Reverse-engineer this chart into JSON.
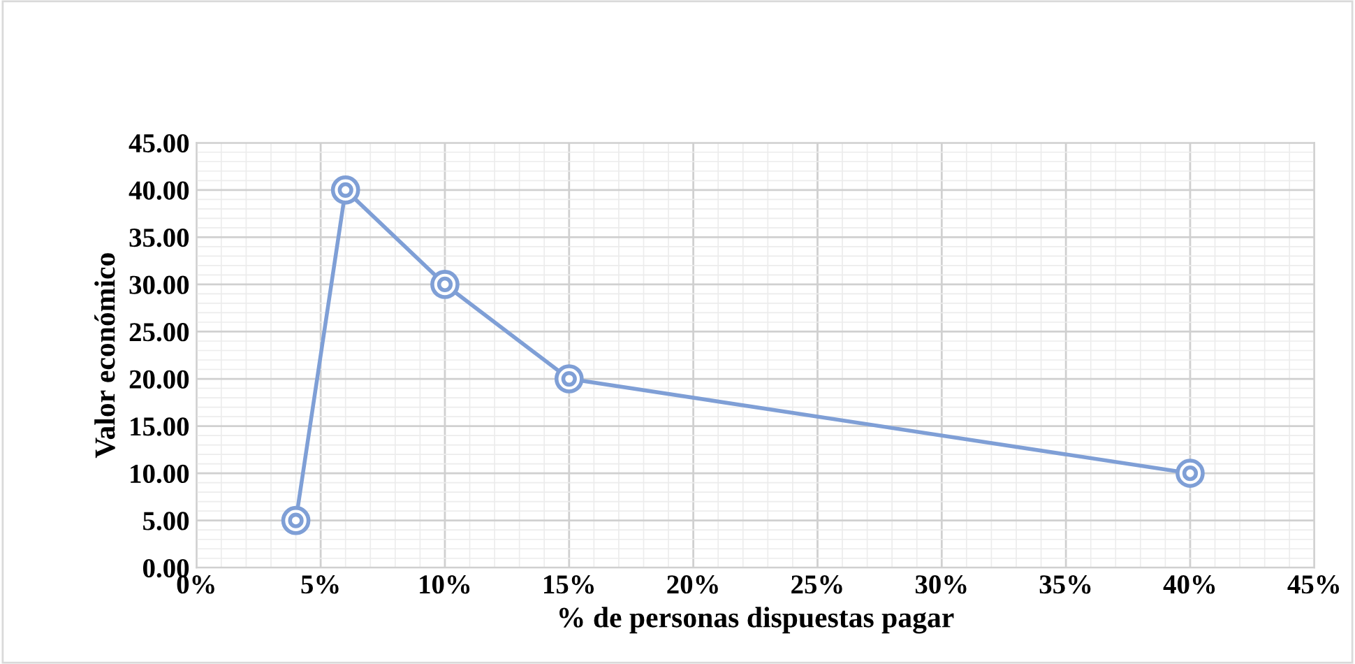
{
  "chart_data": {
    "type": "line",
    "xlabel": "% de personas dispuestas pagar",
    "ylabel": "Valor económico",
    "x": [
      4,
      6,
      10,
      15,
      40
    ],
    "series": [
      {
        "color": "#7f9fd6",
        "values": [
          5,
          40,
          30,
          20,
          10
        ]
      }
    ],
    "marker": "circle",
    "line_style": "solid",
    "grid": true,
    "xlim": [
      0,
      45
    ],
    "xticks": [
      {
        "value": 0,
        "label": "0%"
      },
      {
        "value": 5,
        "label": "5%"
      },
      {
        "value": 10,
        "label": "10%"
      },
      {
        "value": 15,
        "label": "15%"
      },
      {
        "value": 20,
        "label": "20%"
      },
      {
        "value": 25,
        "label": "25%"
      },
      {
        "value": 30,
        "label": "30%"
      },
      {
        "value": 35,
        "label": "35%"
      },
      {
        "value": 40,
        "label": "40%"
      },
      {
        "value": 45,
        "label": "45%"
      }
    ],
    "ylim": [
      0,
      45
    ],
    "yticks": [
      {
        "value": 0,
        "label": "0.00"
      },
      {
        "value": 5,
        "label": "5.00"
      },
      {
        "value": 10,
        "label": "10.00"
      },
      {
        "value": 15,
        "label": "15.00"
      },
      {
        "value": 20,
        "label": "20.00"
      },
      {
        "value": 25,
        "label": "25.00"
      },
      {
        "value": 30,
        "label": "30.00"
      },
      {
        "value": 35,
        "label": "35.00"
      },
      {
        "value": 40,
        "label": "40.00"
      },
      {
        "value": 45,
        "label": "45.00"
      }
    ]
  }
}
